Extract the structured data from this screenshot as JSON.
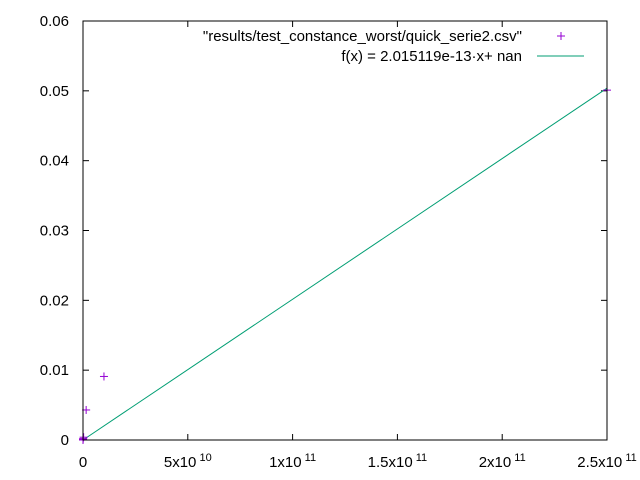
{
  "chart_data": {
    "type": "scatter",
    "title": "",
    "xlabel": "",
    "ylabel": "",
    "xlim": [
      0,
      250000000000
    ],
    "ylim": [
      0,
      0.06
    ],
    "grid": false,
    "legend_position": "top-right",
    "x_ticks": [
      {
        "value": 0,
        "label": "0",
        "exp": ""
      },
      {
        "value": 50000000000,
        "label": "5x10",
        "exp": "10"
      },
      {
        "value": 100000000000,
        "label": "1x10",
        "exp": "11"
      },
      {
        "value": 150000000000,
        "label": "1.5x10",
        "exp": "11"
      },
      {
        "value": 200000000000,
        "label": "2x10",
        "exp": "11"
      },
      {
        "value": 250000000000,
        "label": "2.5x10",
        "exp": "11"
      }
    ],
    "y_ticks": [
      {
        "value": 0,
        "label": "0"
      },
      {
        "value": 0.01,
        "label": "0.01"
      },
      {
        "value": 0.02,
        "label": "0.02"
      },
      {
        "value": 0.03,
        "label": "0.03"
      },
      {
        "value": 0.04,
        "label": "0.04"
      },
      {
        "value": 0.05,
        "label": "0.05"
      },
      {
        "value": 0.06,
        "label": "0.06"
      }
    ],
    "series": [
      {
        "name": "\"results/test_constance_worst/quick_serie2.csv\"",
        "kind": "points",
        "marker": "+",
        "color": "#9400d3",
        "points": [
          {
            "x": 0,
            "y": 0
          },
          {
            "x": 20000000,
            "y": 0.0001
          },
          {
            "x": 80000000,
            "y": 0.0002
          },
          {
            "x": 300000000,
            "y": 0.0004
          },
          {
            "x": 1500000000,
            "y": 0.0043
          },
          {
            "x": 10000000000,
            "y": 0.0091
          },
          {
            "x": 250000000000,
            "y": 0.0501
          }
        ]
      },
      {
        "name": "f(x) = 2.015119e-13·x+ nan",
        "kind": "line",
        "color": "#009e73",
        "slope": 2.015119e-13,
        "intercept": 0
      }
    ]
  }
}
